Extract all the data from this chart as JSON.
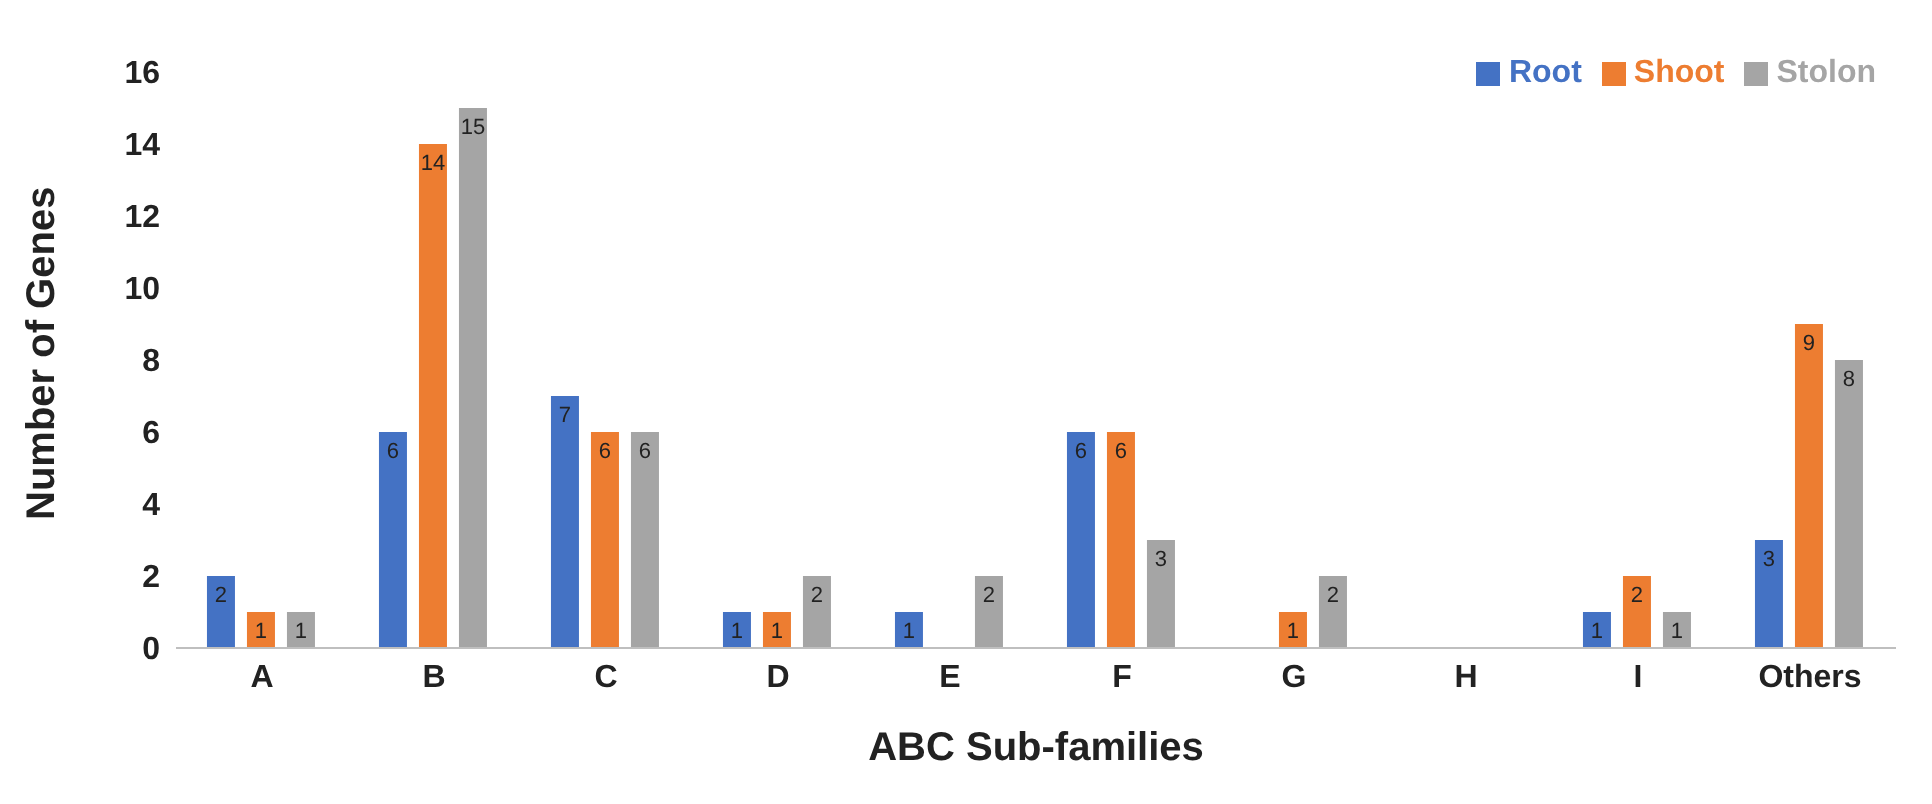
{
  "chart_data": {
    "type": "bar",
    "xlabel": "ABC Sub-families",
    "ylabel": "Number of Genes",
    "categories": [
      "A",
      "B",
      "C",
      "D",
      "E",
      "F",
      "G",
      "H",
      "I",
      "Others"
    ],
    "series": [
      {
        "name": "Root",
        "color": "#4472c4",
        "values": [
          2,
          6,
          7,
          1,
          1,
          6,
          null,
          null,
          1,
          3
        ]
      },
      {
        "name": "Shoot",
        "color": "#ed7d31",
        "values": [
          1,
          14,
          6,
          1,
          null,
          6,
          1,
          null,
          2,
          9
        ]
      },
      {
        "name": "Stolon",
        "color": "#a5a5a5",
        "values": [
          1,
          15,
          6,
          2,
          2,
          3,
          2,
          null,
          1,
          8
        ]
      }
    ],
    "ylim": [
      0,
      16
    ],
    "yticks": [
      0,
      2,
      4,
      6,
      8,
      10,
      12,
      14,
      16
    ],
    "grid": false,
    "legend": "top right",
    "data_labels": true
  }
}
